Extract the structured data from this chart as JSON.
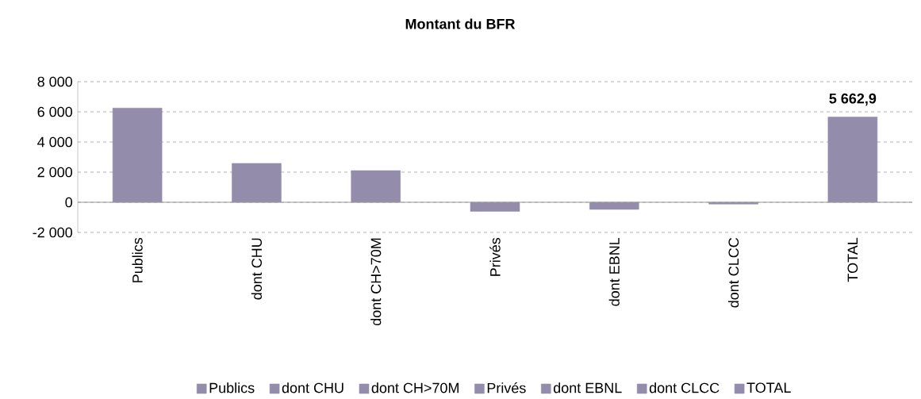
{
  "chart_data": {
    "type": "bar",
    "title": "Montant du BFR",
    "categories": [
      "Publics",
      "dont CHU",
      "dont CH>70M",
      "Privés",
      "dont EBNL",
      "dont CLCC",
      "TOTAL"
    ],
    "series": [
      {
        "name": "Publics",
        "color": "#948cab",
        "values": [
          6250,
          null,
          null,
          null,
          null,
          null,
          null
        ]
      },
      {
        "name": "dont CHU",
        "color": "#948cab",
        "values": [
          null,
          2580,
          null,
          null,
          null,
          null,
          null
        ]
      },
      {
        "name": "dont CH>70M",
        "color": "#948cab",
        "values": [
          null,
          null,
          2100,
          null,
          null,
          null,
          null
        ]
      },
      {
        "name": "Privés",
        "color": "#948cab",
        "values": [
          null,
          null,
          null,
          -600,
          null,
          null,
          null
        ]
      },
      {
        "name": "dont EBNL",
        "color": "#948cab",
        "values": [
          null,
          null,
          null,
          null,
          -470,
          null,
          null
        ]
      },
      {
        "name": "dont CLCC",
        "color": "#948cab",
        "values": [
          null,
          null,
          null,
          null,
          null,
          -120,
          null
        ]
      },
      {
        "name": "TOTAL",
        "color": "#948cab",
        "values": [
          null,
          null,
          null,
          null,
          null,
          null,
          5662.9
        ],
        "value_labels": [
          null,
          null,
          null,
          null,
          null,
          null,
          "5 662,9"
        ]
      }
    ],
    "ylim": [
      -2000,
      8000
    ],
    "yticks": [
      {
        "value": -2000,
        "label": "-2 000"
      },
      0,
      {
        "value": 2000,
        "label": "2 000"
      },
      {
        "value": 4000,
        "label": "4 000"
      },
      {
        "value": 6000,
        "label": "6 000"
      },
      {
        "value": 8000,
        "label": "8 000"
      }
    ],
    "grid": "y",
    "legend": "bottom"
  }
}
